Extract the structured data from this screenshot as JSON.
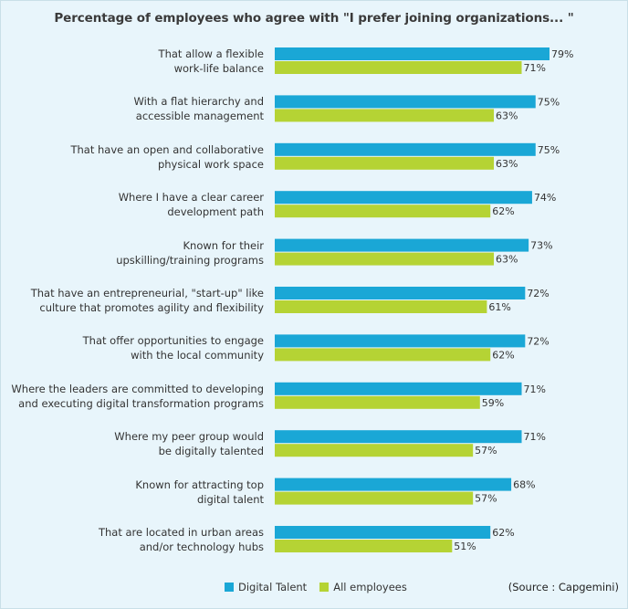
{
  "chart_data": {
    "type": "bar",
    "orientation": "horizontal",
    "title": "Percentage of employees who agree with \"I prefer joining organizations... \"",
    "categories": [
      [
        "That allow a flexible",
        "work-life balance"
      ],
      [
        "With a flat hierarchy and",
        "accessible management"
      ],
      [
        "That have an open and collaborative",
        "physical work space"
      ],
      [
        "Where I have a clear career",
        "development  path"
      ],
      [
        "Known for their",
        "upskilling/training programs"
      ],
      [
        "That have an entrepreneurial, \"start-up\" like",
        "culture that promotes agility and flexibility"
      ],
      [
        "That offer opportunities  to engage",
        "with the local community"
      ],
      [
        "Where the leaders are committed to developing",
        "and executing digital transformation programs"
      ],
      [
        "Where my peer group would",
        "be digitally talented"
      ],
      [
        "Known for attracting top",
        "digital talent"
      ],
      [
        "That are located in urban areas",
        "and/or technology hubs"
      ]
    ],
    "series": [
      {
        "name": "Digital Talent",
        "color": "#1aa7d6",
        "values": [
          79,
          75,
          75,
          74,
          73,
          72,
          72,
          71,
          71,
          68,
          62
        ]
      },
      {
        "name": "All employees",
        "color": "#b5d334",
        "values": [
          71,
          63,
          63,
          62,
          63,
          61,
          62,
          59,
          57,
          57,
          51
        ]
      }
    ],
    "value_suffix": "%",
    "xlim": [
      0,
      100
    ],
    "grid": false,
    "legend": "bottom"
  },
  "source_note": "(Source : Capgemini)"
}
